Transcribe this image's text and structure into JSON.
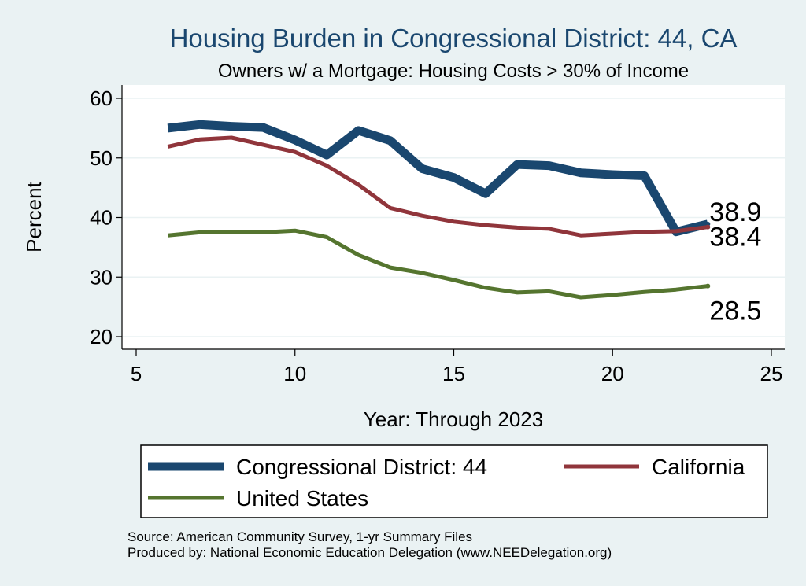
{
  "chart_data": {
    "type": "line",
    "title": "Housing Burden in Congressional District:  44, CA",
    "subtitle": "Owners w/ a Mortgage: Housing Costs > 30% of Income",
    "xlabel": "Year: Through 2023",
    "ylabel": "Percent",
    "xlim": [
      5,
      25
    ],
    "ylim": [
      20,
      60
    ],
    "xticks": [
      5,
      10,
      15,
      20,
      25
    ],
    "yticks": [
      20,
      30,
      40,
      50,
      60
    ],
    "grid": true,
    "legend_position": "bottom",
    "series": [
      {
        "name": "Congressional District:  44",
        "color": "#1a476f",
        "x": [
          6,
          7,
          8,
          9,
          10,
          11,
          12,
          13,
          14,
          15,
          16,
          17,
          18,
          19,
          20,
          21,
          22,
          23
        ],
        "values": [
          55.0,
          55.6,
          55.3,
          55.1,
          53.0,
          50.5,
          54.6,
          52.9,
          48.2,
          46.7,
          44.0,
          48.9,
          48.7,
          47.5,
          47.2,
          47.0,
          37.6,
          38.9
        ],
        "end_label": "38.9"
      },
      {
        "name": "California",
        "color": "#90353b",
        "x": [
          6,
          7,
          8,
          9,
          10,
          11,
          12,
          13,
          14,
          15,
          16,
          17,
          18,
          19,
          20,
          21,
          22,
          23
        ],
        "values": [
          51.9,
          53.1,
          53.4,
          52.2,
          51.0,
          48.7,
          45.5,
          41.6,
          40.3,
          39.3,
          38.7,
          38.3,
          38.1,
          37.0,
          37.3,
          37.6,
          37.7,
          38.4
        ],
        "end_label": "38.4"
      },
      {
        "name": "United States",
        "color": "#55752f",
        "x": [
          6,
          7,
          8,
          9,
          10,
          11,
          12,
          13,
          14,
          15,
          16,
          17,
          18,
          19,
          20,
          21,
          22,
          23
        ],
        "values": [
          37.0,
          37.5,
          37.6,
          37.5,
          37.8,
          36.7,
          33.7,
          31.6,
          30.7,
          29.5,
          28.2,
          27.4,
          27.6,
          26.6,
          27.0,
          27.5,
          27.9,
          28.5
        ],
        "end_label": "28.5"
      }
    ]
  },
  "source_lines": [
    "Source: American Community Survey, 1-yr Summary Files",
    "Produced by: National Economic Education Delegation (www.NEEDelegation.org)"
  ]
}
